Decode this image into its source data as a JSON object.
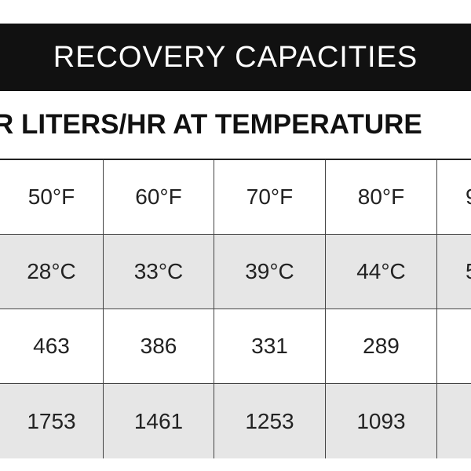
{
  "title": "RECOVERY CAPACITIES",
  "subtitle": "R LITERS/HR AT TEMPERATURE",
  "table": {
    "rows": [
      [
        "50°F",
        "60°F",
        "70°F",
        "80°F",
        "9"
      ],
      [
        "28°C",
        "33°C",
        "39°C",
        "44°C",
        "5"
      ],
      [
        "463",
        "386",
        "331",
        "289",
        ""
      ],
      [
        "1753",
        "1461",
        "1253",
        "1093",
        ""
      ]
    ],
    "shaded_rows": [
      1,
      3
    ],
    "shade_color": "#e6e6e6",
    "header_color": "#111111"
  }
}
